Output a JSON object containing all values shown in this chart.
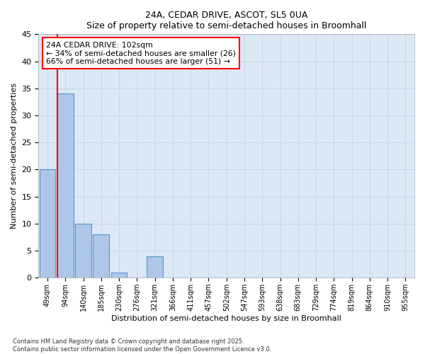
{
  "title1": "24A, CEDAR DRIVE, ASCOT, SL5 0UA",
  "title2": "Size of property relative to semi-detached houses in Broomhall",
  "xlabel": "Distribution of semi-detached houses by size in Broomhall",
  "ylabel": "Number of semi-detached properties",
  "categories": [
    "49sqm",
    "94sqm",
    "140sqm",
    "185sqm",
    "230sqm",
    "276sqm",
    "321sqm",
    "366sqm",
    "411sqm",
    "457sqm",
    "502sqm",
    "547sqm",
    "593sqm",
    "638sqm",
    "683sqm",
    "729sqm",
    "774sqm",
    "819sqm",
    "864sqm",
    "910sqm",
    "955sqm"
  ],
  "values": [
    20,
    34,
    10,
    8,
    1,
    0,
    4,
    0,
    0,
    0,
    0,
    0,
    0,
    0,
    0,
    0,
    0,
    0,
    0,
    0,
    0
  ],
  "bar_color": "#aec6e8",
  "bar_edge_color": "#5599cc",
  "grid_color": "#c8d8ea",
  "bg_color": "#dce8f5",
  "red_line_x": 0.55,
  "annotation_title": "24A CEDAR DRIVE: 102sqm",
  "annotation_line1": "← 34% of semi-detached houses are smaller (26)",
  "annotation_line2": "66% of semi-detached houses are larger (51) →",
  "footer1": "Contains HM Land Registry data © Crown copyright and database right 2025.",
  "footer2": "Contains public sector information licensed under the Open Government Licence v3.0.",
  "ylim": [
    0,
    45
  ],
  "yticks": [
    0,
    5,
    10,
    15,
    20,
    25,
    30,
    35,
    40,
    45
  ]
}
